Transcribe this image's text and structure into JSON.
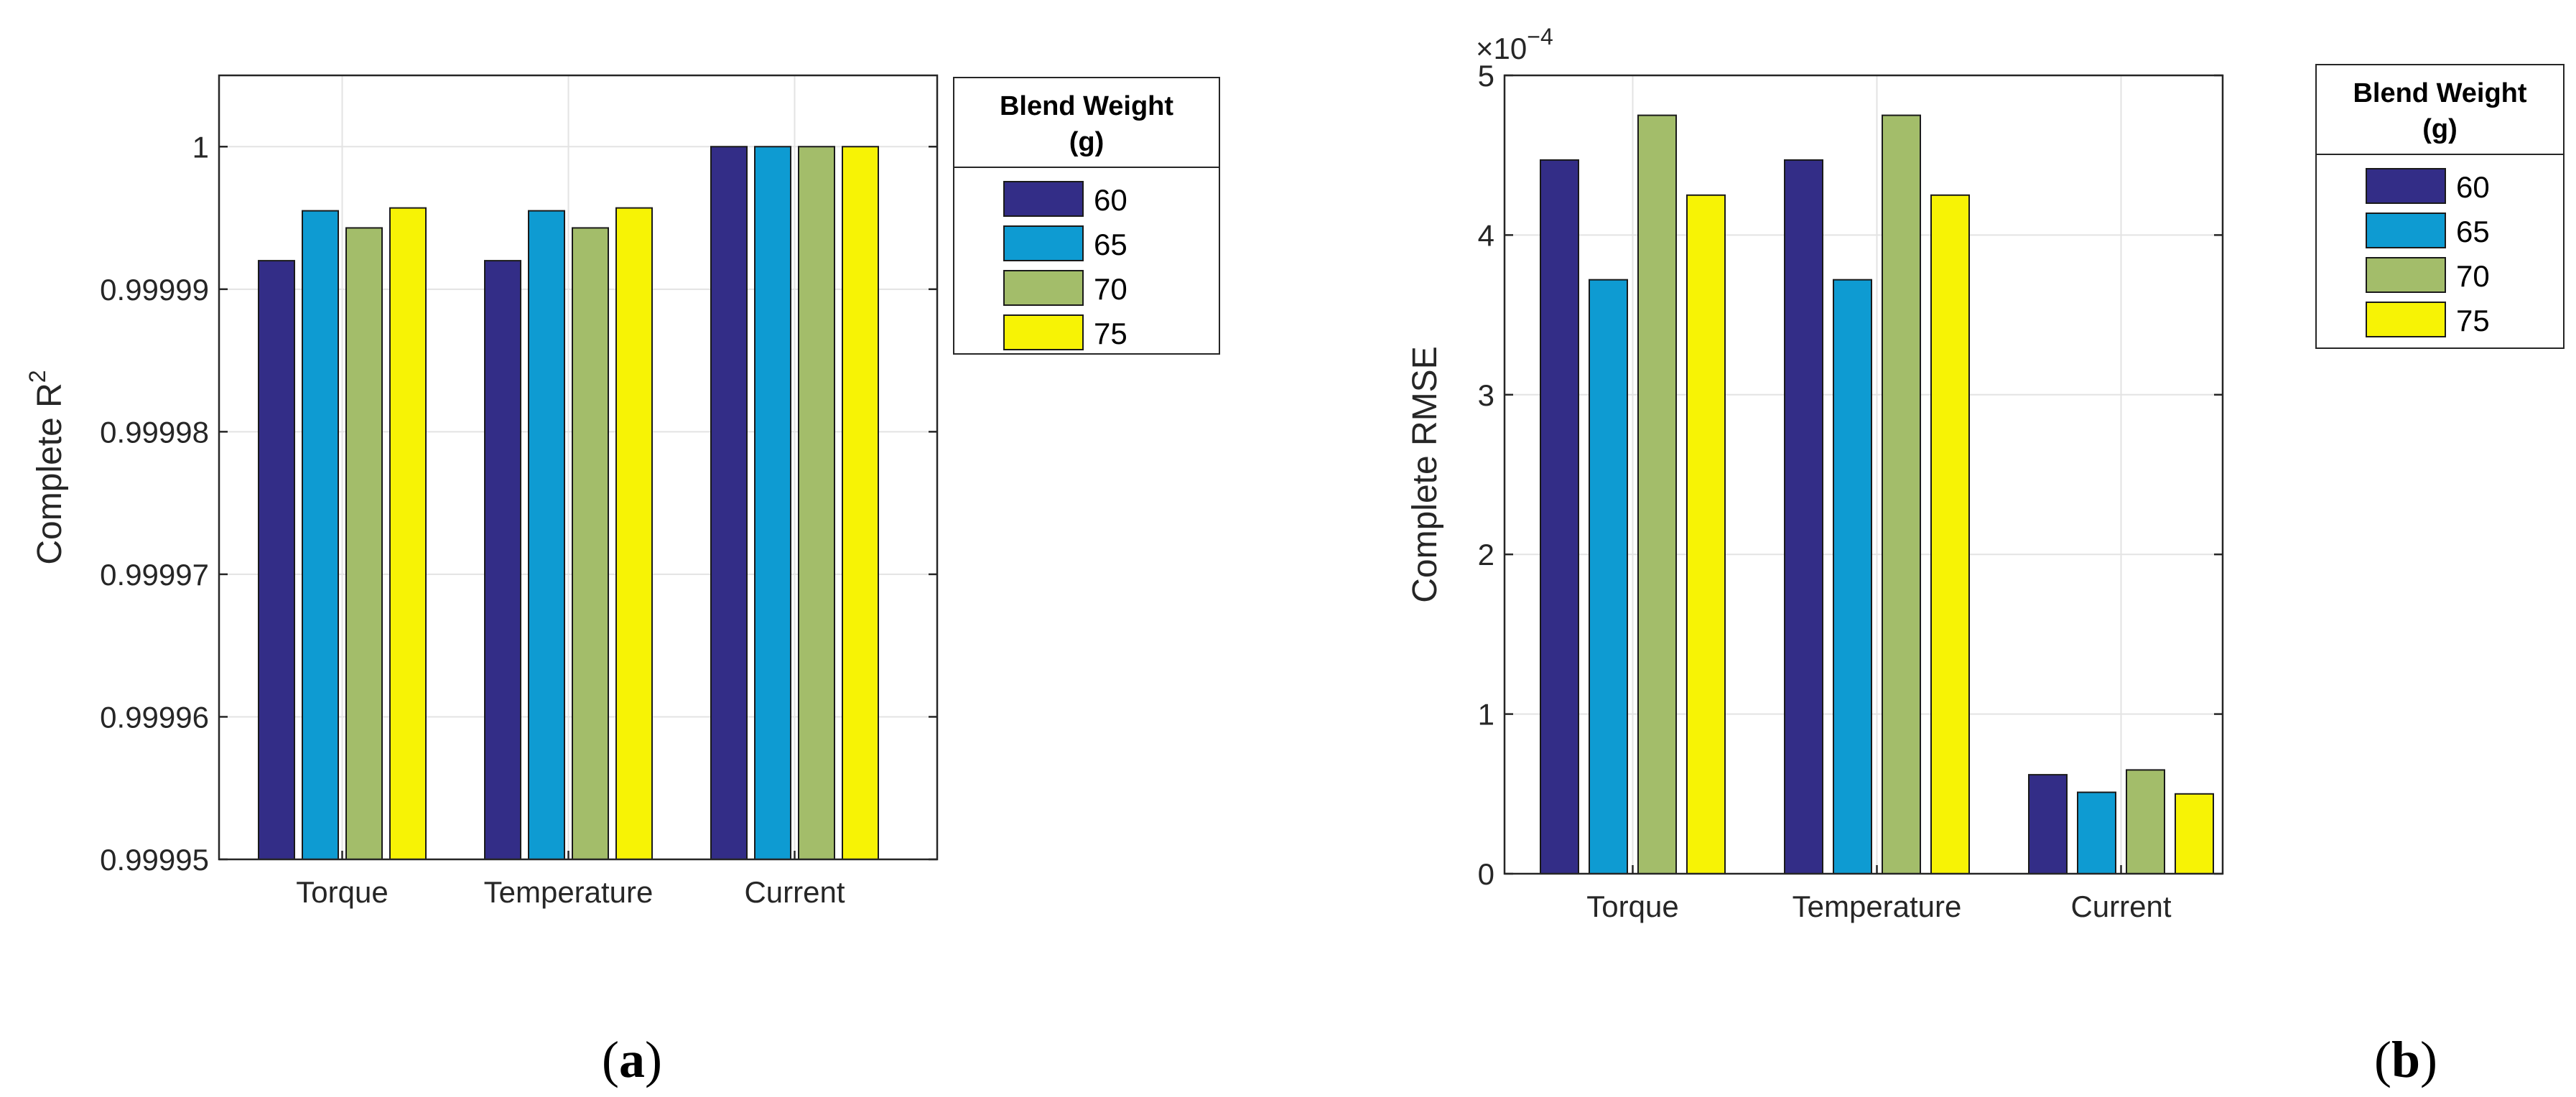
{
  "chart_data": [
    {
      "type": "bar",
      "caption": "(a)",
      "categories": [
        "Torque",
        "Temperature",
        "Current"
      ],
      "series": [
        {
          "name": "60",
          "values": [
            0.999992,
            0.999992,
            1.0
          ]
        },
        {
          "name": "65",
          "values": [
            0.9999955,
            0.9999955,
            1.0
          ]
        },
        {
          "name": "70",
          "values": [
            0.9999943,
            0.9999943,
            1.0
          ]
        },
        {
          "name": "75",
          "values": [
            0.9999957,
            0.9999957,
            1.0
          ]
        }
      ],
      "ylabel": "Complete R",
      "ylabel_sup": "2",
      "ylim": [
        0.99995,
        1.000005
      ],
      "yticks": [
        "0.99995",
        "0.99996",
        "0.99997",
        "0.99998",
        "0.99999",
        "1"
      ],
      "ytick_values": [
        0.99995,
        0.99996,
        0.99997,
        0.99998,
        0.99999,
        1.0
      ],
      "grid": true,
      "legend_title": "Blend Weight (g)",
      "legend_title_lines": [
        "Blend Weight",
        "(g)"
      ],
      "legend_placement": "outside-right"
    },
    {
      "type": "bar",
      "caption": "(b)",
      "categories": [
        "Torque",
        "Temperature",
        "Current"
      ],
      "series": [
        {
          "name": "60",
          "values": [
            4.47,
            4.47,
            0.62
          ]
        },
        {
          "name": "65",
          "values": [
            3.72,
            3.72,
            0.51
          ]
        },
        {
          "name": "70",
          "values": [
            4.75,
            4.75,
            0.65
          ]
        },
        {
          "name": "75",
          "values": [
            4.25,
            4.25,
            0.5
          ]
        }
      ],
      "ylabel": "Complete RMSE",
      "y_multiplier_base": "×10",
      "y_multiplier_exp": "−4",
      "ylim": [
        0,
        5
      ],
      "yticks": [
        "0",
        "1",
        "2",
        "3",
        "4",
        "5"
      ],
      "ytick_values": [
        0,
        1,
        2,
        3,
        4,
        5
      ],
      "grid": true,
      "legend_title": "Blend Weight (g)",
      "legend_title_lines": [
        "Blend Weight",
        "(g)"
      ],
      "legend_placement": "outside-right"
    }
  ],
  "colors": {
    "series": [
      "#332d87",
      "#0e9bd2",
      "#a3bd6a",
      "#f7f305"
    ]
  }
}
